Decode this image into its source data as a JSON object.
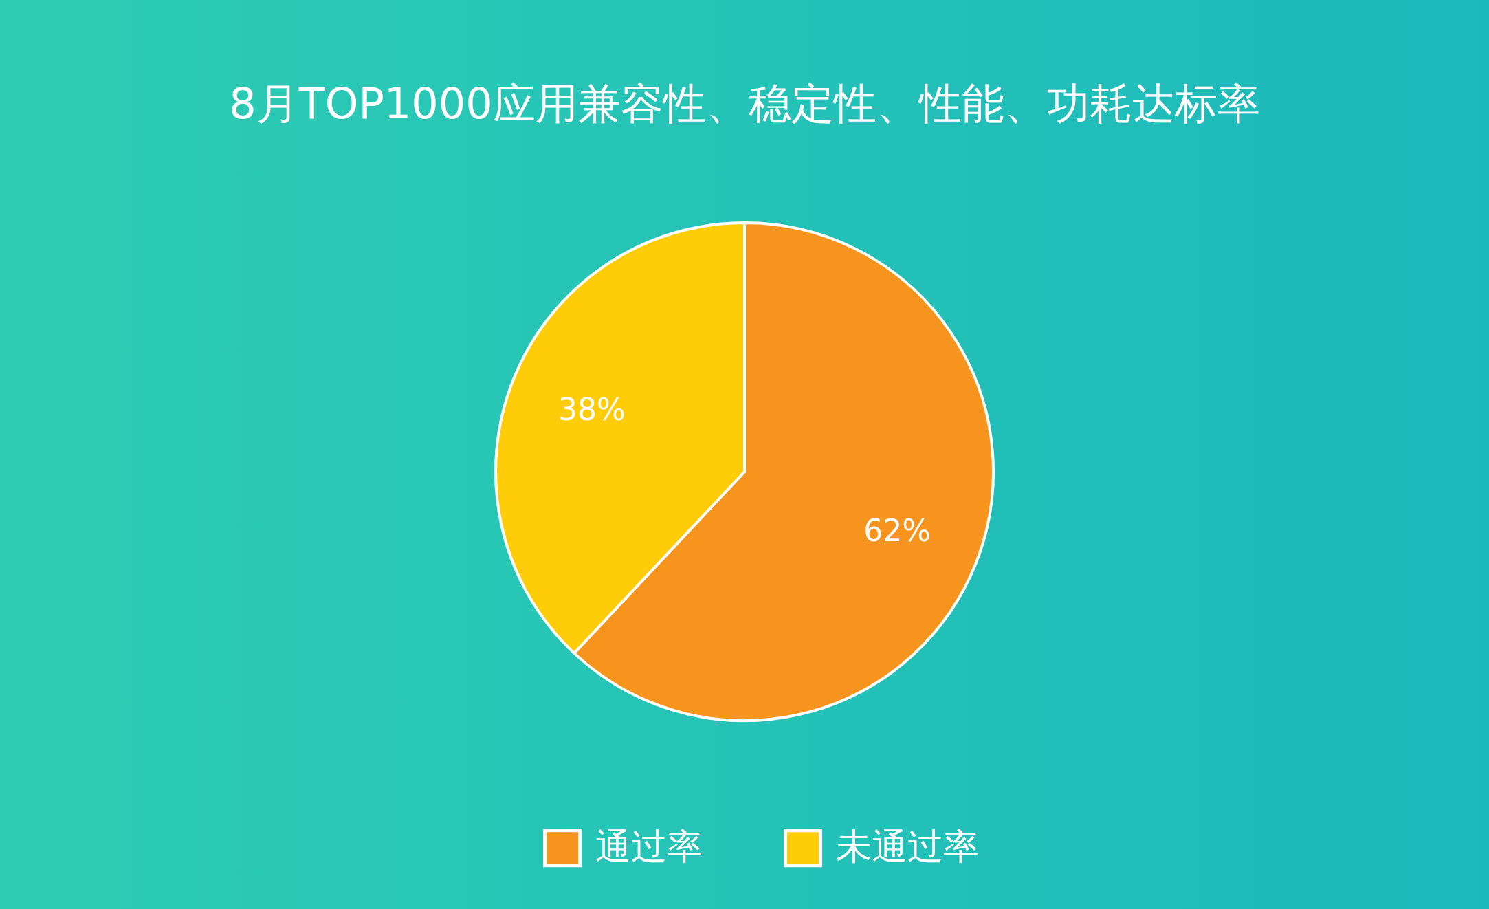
{
  "chart_data": {
    "type": "pie",
    "title": "8月TOP1000应用兼容性、稳定性、性能、功耗达标率",
    "categories": [
      "通过率",
      "未通过率"
    ],
    "values": [
      62,
      38
    ],
    "colors": [
      "#f7941e",
      "#ffcc0a"
    ],
    "value_labels": [
      "62%",
      "38%"
    ],
    "legend": "bottom"
  }
}
